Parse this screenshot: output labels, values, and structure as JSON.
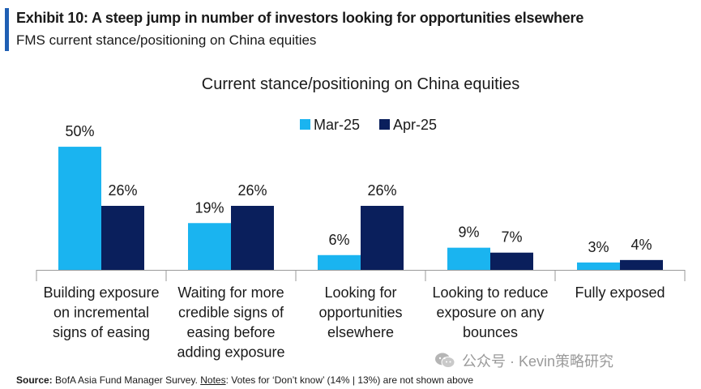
{
  "header": {
    "title": "Exhibit 10: A steep jump in number of investors looking for opportunities elsewhere",
    "subtitle": "FMS current stance/positioning on China equities",
    "accent_color": "#1f5fb4"
  },
  "chart_data": {
    "type": "bar",
    "title": "Current stance/positioning on China equities",
    "categories": [
      [
        "Building exposure",
        "on incremental",
        "signs of easing"
      ],
      [
        "Waiting for more",
        "credible signs of",
        "easing before",
        "adding exposure"
      ],
      [
        "Looking for",
        "opportunities",
        "elsewhere"
      ],
      [
        "Looking to reduce",
        "exposure on any",
        "bounces"
      ],
      [
        "Fully exposed"
      ]
    ],
    "series": [
      {
        "name": "Mar-25",
        "values": [
          50,
          19,
          6,
          9,
          3
        ],
        "color": "#1ab4f0"
      },
      {
        "name": "Apr-25",
        "values": [
          26,
          26,
          26,
          7,
          4
        ],
        "color": "#0a1f5c"
      }
    ],
    "value_suffix": "%",
    "ylim": [
      0,
      52
    ],
    "legend_position": "top-center",
    "grid": false
  },
  "footer": {
    "source_label": "Source:",
    "source_text": " BofA Asia Fund Manager Survey. ",
    "notes_label": "Notes",
    "notes_text": ": Votes for ‘Don’t know’ (14% | 13%) are not shown above"
  },
  "watermark": {
    "text": "公众号 · Kevin策略研究",
    "icon": "wechat-icon"
  }
}
